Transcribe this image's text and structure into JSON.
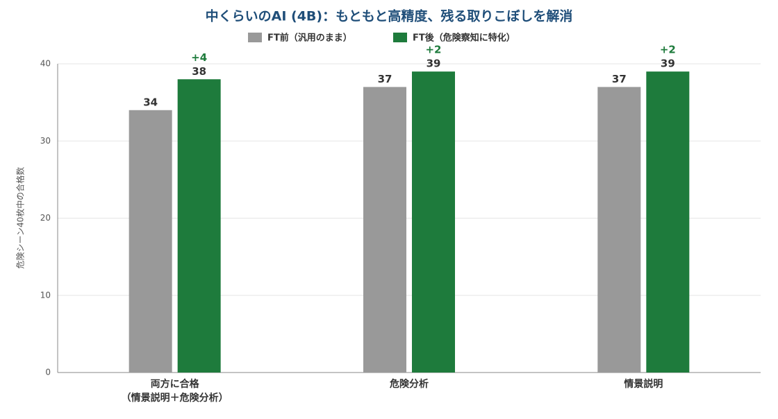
{
  "chart_data": {
    "type": "bar",
    "title": "中くらいのAI (4B)：もともと高精度、残る取りこぼしを解消",
    "y_label": "危険シーン40枚中の合格数",
    "categories": [
      [
        "両方に合格",
        "（情景説明＋危険分析）"
      ],
      [
        "危険分析"
      ],
      [
        "情景説明"
      ]
    ],
    "series": [
      {
        "name": "FT前（汎用のまま）",
        "color": "#999999",
        "values": [
          34,
          37,
          37
        ]
      },
      {
        "name": "FT後（危険察知に特化）",
        "color": "#1e7b3c",
        "values": [
          38,
          39,
          39
        ],
        "annotations": [
          "+4",
          "+2",
          "+2"
        ]
      }
    ],
    "ylim": [
      0,
      40
    ],
    "yticks": [
      0,
      10,
      20,
      30,
      40
    ],
    "grid": true,
    "legend": "top"
  }
}
